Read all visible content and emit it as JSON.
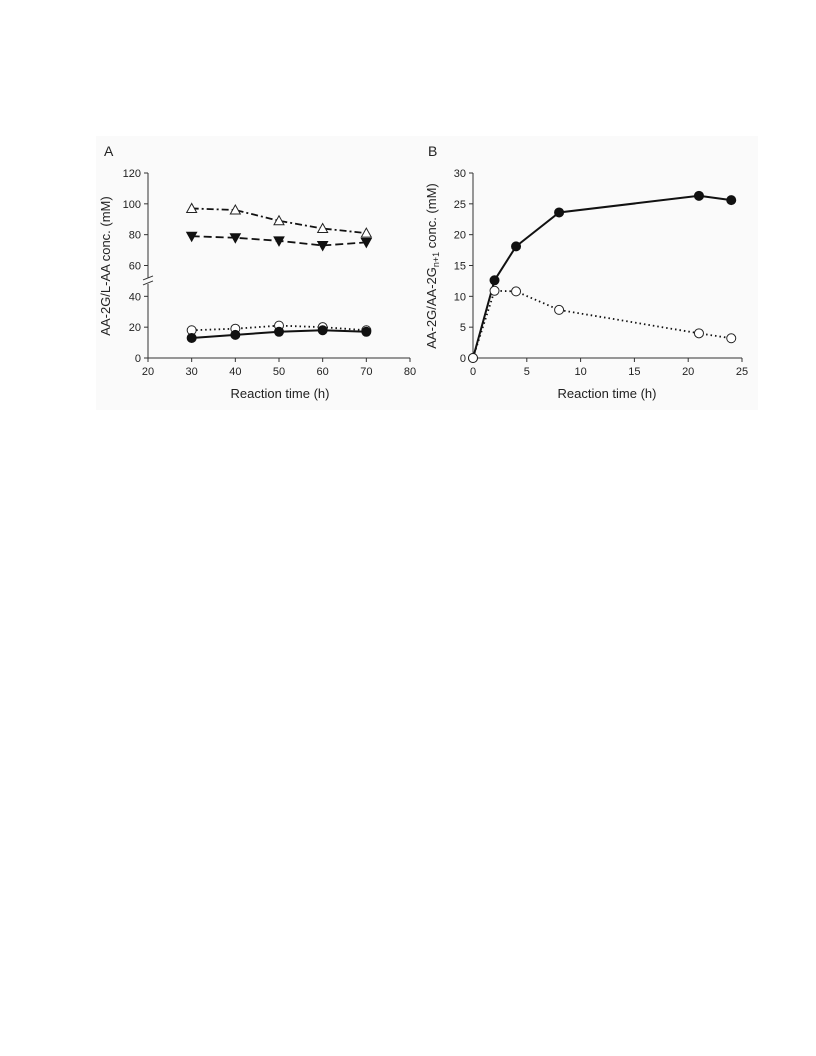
{
  "chart_data": [
    {
      "type": "line",
      "panel_label": "A",
      "xlabel": "Reaction time (h)",
      "ylabel": "AA-2G/L-AA conc. (mM)",
      "xlim": [
        20,
        80
      ],
      "ylim": [
        0,
        120
      ],
      "x_ticks": [
        "20",
        "30",
        "40",
        "50",
        "60",
        "70",
        "80"
      ],
      "y_ticks": [
        "0",
        "20",
        "40",
        "60",
        "80",
        "100",
        "120"
      ],
      "axis_break": true,
      "grid": false,
      "series": [
        {
          "marker": "triangle-up-open",
          "line": "dash-dot",
          "x": [
            30,
            40,
            50,
            60,
            70
          ],
          "values": [
            97,
            96,
            89,
            84,
            81
          ]
        },
        {
          "marker": "triangle-down-filled",
          "line": "dashed",
          "x": [
            30,
            40,
            50,
            60,
            70
          ],
          "values": [
            79,
            78,
            76,
            73,
            75
          ]
        },
        {
          "marker": "circle-open",
          "line": "dotted",
          "x": [
            30,
            40,
            50,
            60,
            70
          ],
          "values": [
            18,
            19,
            21,
            20,
            18
          ]
        },
        {
          "marker": "circle-filled",
          "line": "solid",
          "x": [
            30,
            40,
            50,
            60,
            70
          ],
          "values": [
            13,
            15,
            17,
            18,
            17
          ]
        }
      ]
    },
    {
      "type": "line",
      "panel_label": "B",
      "xlabel": "Reaction time (h)",
      "ylabel_main": "AA-2G/AA-2G",
      "ylabel_sub": "n+1",
      "ylabel_tail": " conc. (mM)",
      "xlim": [
        0,
        25
      ],
      "ylim": [
        0,
        30
      ],
      "x_ticks": [
        "0",
        "5",
        "10",
        "15",
        "20",
        "25"
      ],
      "y_ticks": [
        "0",
        "5",
        "10",
        "15",
        "20",
        "25",
        "30"
      ],
      "grid": false,
      "series": [
        {
          "marker": "circle-filled",
          "line": "solid",
          "x": [
            0,
            2,
            4,
            8,
            21,
            24
          ],
          "values": [
            0,
            12.6,
            18.1,
            23.6,
            26.3,
            25.6
          ]
        },
        {
          "marker": "circle-open",
          "line": "dotted",
          "x": [
            0,
            2,
            4,
            8,
            21,
            24
          ],
          "values": [
            0,
            10.9,
            10.8,
            7.8,
            4.0,
            3.2
          ]
        }
      ]
    }
  ]
}
